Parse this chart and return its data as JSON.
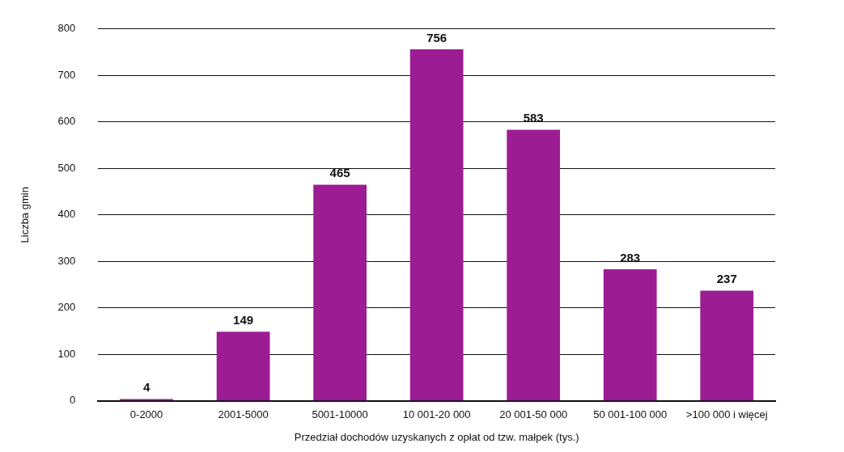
{
  "chart_data": {
    "type": "bar",
    "xlabel": "Przedział dochodów uzyskanych z opłat od tzw. małpek (tys.)",
    "ylabel": "Liczba gmin",
    "categories": [
      "0-2000",
      "2001-5000",
      "5001-10000",
      "10 001-20 000",
      "20 001-50 000",
      "50 001-100 000",
      ">100 000 i więcej"
    ],
    "values": [
      4,
      149,
      465,
      756,
      583,
      283,
      237
    ],
    "color": "#9c1c94",
    "ylim": [
      0,
      800
    ],
    "yticks": [
      0,
      100,
      200,
      300,
      400,
      500,
      600,
      700,
      800
    ],
    "grid": "y",
    "data_labels": true
  }
}
